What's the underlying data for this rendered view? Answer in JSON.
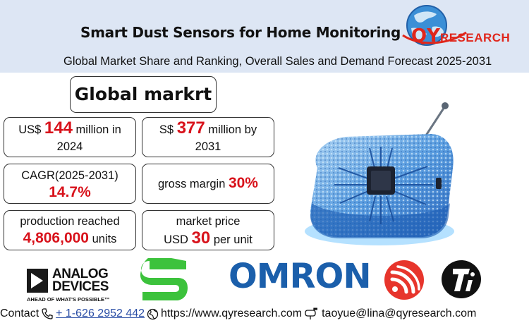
{
  "header": {
    "title": "Smart Dust Sensors for Home Monitoring",
    "subtitle": "Global Market Share and Ranking, Overall Sales and Demand Forecast 2025-2031"
  },
  "logo": {
    "letters": "QY",
    "text": "RESEARCH",
    "color": "#e0261b"
  },
  "global_market": {
    "label": "Global markrt"
  },
  "stats": {
    "market_2024": {
      "prefix": "US$ ",
      "value": "144",
      "suffix": " million in",
      "line2": "2024"
    },
    "market_2031": {
      "prefix": "S$ ",
      "value": "377",
      "suffix": " million by",
      "line2": "2031"
    },
    "cagr": {
      "label": "CAGR(2025-2031)",
      "value": "14.7%"
    },
    "gross_margin": {
      "label": "gross margin ",
      "value": "30%"
    },
    "production": {
      "label": "production reached",
      "value": "4,806,000",
      "unit": " units"
    },
    "price": {
      "label": "market price",
      "prefix": "USD ",
      "value": "30",
      "suffix": " per unit"
    }
  },
  "brands": {
    "analog_devices": {
      "line1": "ANALOG",
      "line2": "DEVICES",
      "tagline": "AHEAD OF WHAT'S POSSIBLE™"
    },
    "omron": "OMRON"
  },
  "contact": {
    "label": "Contact",
    "phone": "+ 1-626 2952 442",
    "website": "https://www.qyresearch.com",
    "email": "taoyue@lina@qyresearch.com"
  },
  "colors": {
    "accent_red": "#d8121b",
    "header_bg": "#dde6f4",
    "omron_blue": "#1b5fab",
    "sigma_green": "#3cc23c"
  }
}
